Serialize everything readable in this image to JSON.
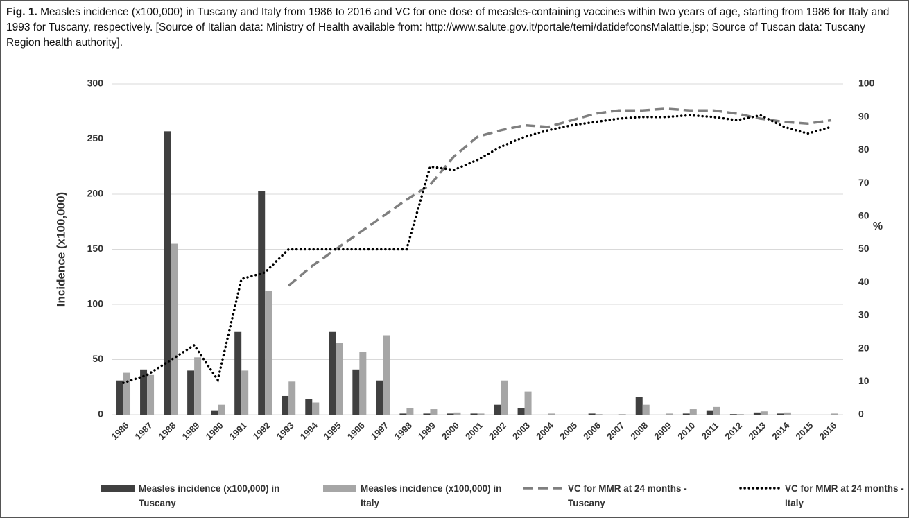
{
  "caption": {
    "label": "Fig. 1.",
    "text": "Measles incidence (x100,000) in Tuscany and Italy from 1986 to 2016 and VC for one dose of measles-containing vaccines within two years of age, starting from 1986 for Italy and 1993 for Tuscany, respectively. [Source of Italian data: Ministry of Health available from: http://www.salute.gov.it/portale/temi/datidefconsMalattie.jsp; Source of Tuscan data: Tuscany Region health authority]."
  },
  "chart_data": {
    "type": "bar",
    "y_label": "Incidence (x100,000)",
    "y2_label": "%",
    "categories": [
      "1986",
      "1987",
      "1988",
      "1989",
      "1990",
      "1991",
      "1992",
      "1993",
      "1994",
      "1995",
      "1996",
      "1997",
      "1998",
      "1999",
      "2000",
      "2001",
      "2002",
      "2003",
      "2004",
      "2005",
      "2006",
      "2007",
      "2008",
      "2009",
      "2010",
      "2011",
      "2012",
      "2013",
      "2014",
      "2015",
      "2016"
    ],
    "series": [
      {
        "name": "Measles incidence (x100,000) in Tuscany",
        "type": "bar",
        "color": "#404040",
        "values": [
          31,
          41,
          257,
          40,
          4,
          75,
          203,
          17,
          14,
          75,
          41,
          31,
          1,
          1,
          1,
          1,
          9,
          6,
          0,
          0,
          1,
          0,
          16,
          0,
          1,
          4,
          0.5,
          2,
          1,
          0,
          0
        ]
      },
      {
        "name": "Measles incidence (x100,000) in Italy",
        "type": "bar",
        "color": "#a6a6a6",
        "values": [
          38,
          36,
          155,
          52,
          9,
          40,
          112,
          30,
          11,
          65,
          57,
          72,
          6,
          5,
          2,
          1,
          31,
          21,
          1,
          0,
          0.5,
          0.5,
          9,
          1,
          5,
          7,
          0.5,
          3,
          2,
          0,
          1
        ]
      },
      {
        "name": "VC for MMR at 24 months - Tuscany",
        "type": "line",
        "style": "dashed",
        "axis": "y2",
        "color": "#7f7f7f",
        "values": [
          null,
          null,
          null,
          null,
          null,
          null,
          null,
          39,
          45,
          50,
          55,
          60,
          65,
          69.5,
          78,
          84,
          86,
          87.5,
          87,
          89,
          91,
          92,
          92,
          92.5,
          92,
          92,
          91,
          89.5,
          88.5,
          88,
          89
        ]
      },
      {
        "name": "VC for MMR at 24 months - Italy",
        "type": "line",
        "style": "dotted",
        "axis": "y2",
        "color": "#000000",
        "values": [
          9.6,
          12,
          16.5,
          21,
          10.5,
          41,
          43,
          50,
          50,
          50,
          50,
          50,
          50,
          75,
          74,
          77,
          81,
          84,
          86,
          87.5,
          88.5,
          89.5,
          90,
          90,
          90.5,
          90,
          89,
          90.5,
          87,
          85,
          87
        ]
      }
    ],
    "ylim": [
      0,
      300
    ],
    "yticks": [
      0,
      50,
      100,
      150,
      200,
      250,
      300
    ],
    "y2lim": [
      0,
      100
    ],
    "y2ticks": [
      0,
      10,
      20,
      30,
      40,
      50,
      60,
      70,
      80,
      90,
      100
    ],
    "grid": true,
    "legend": "bottom"
  }
}
